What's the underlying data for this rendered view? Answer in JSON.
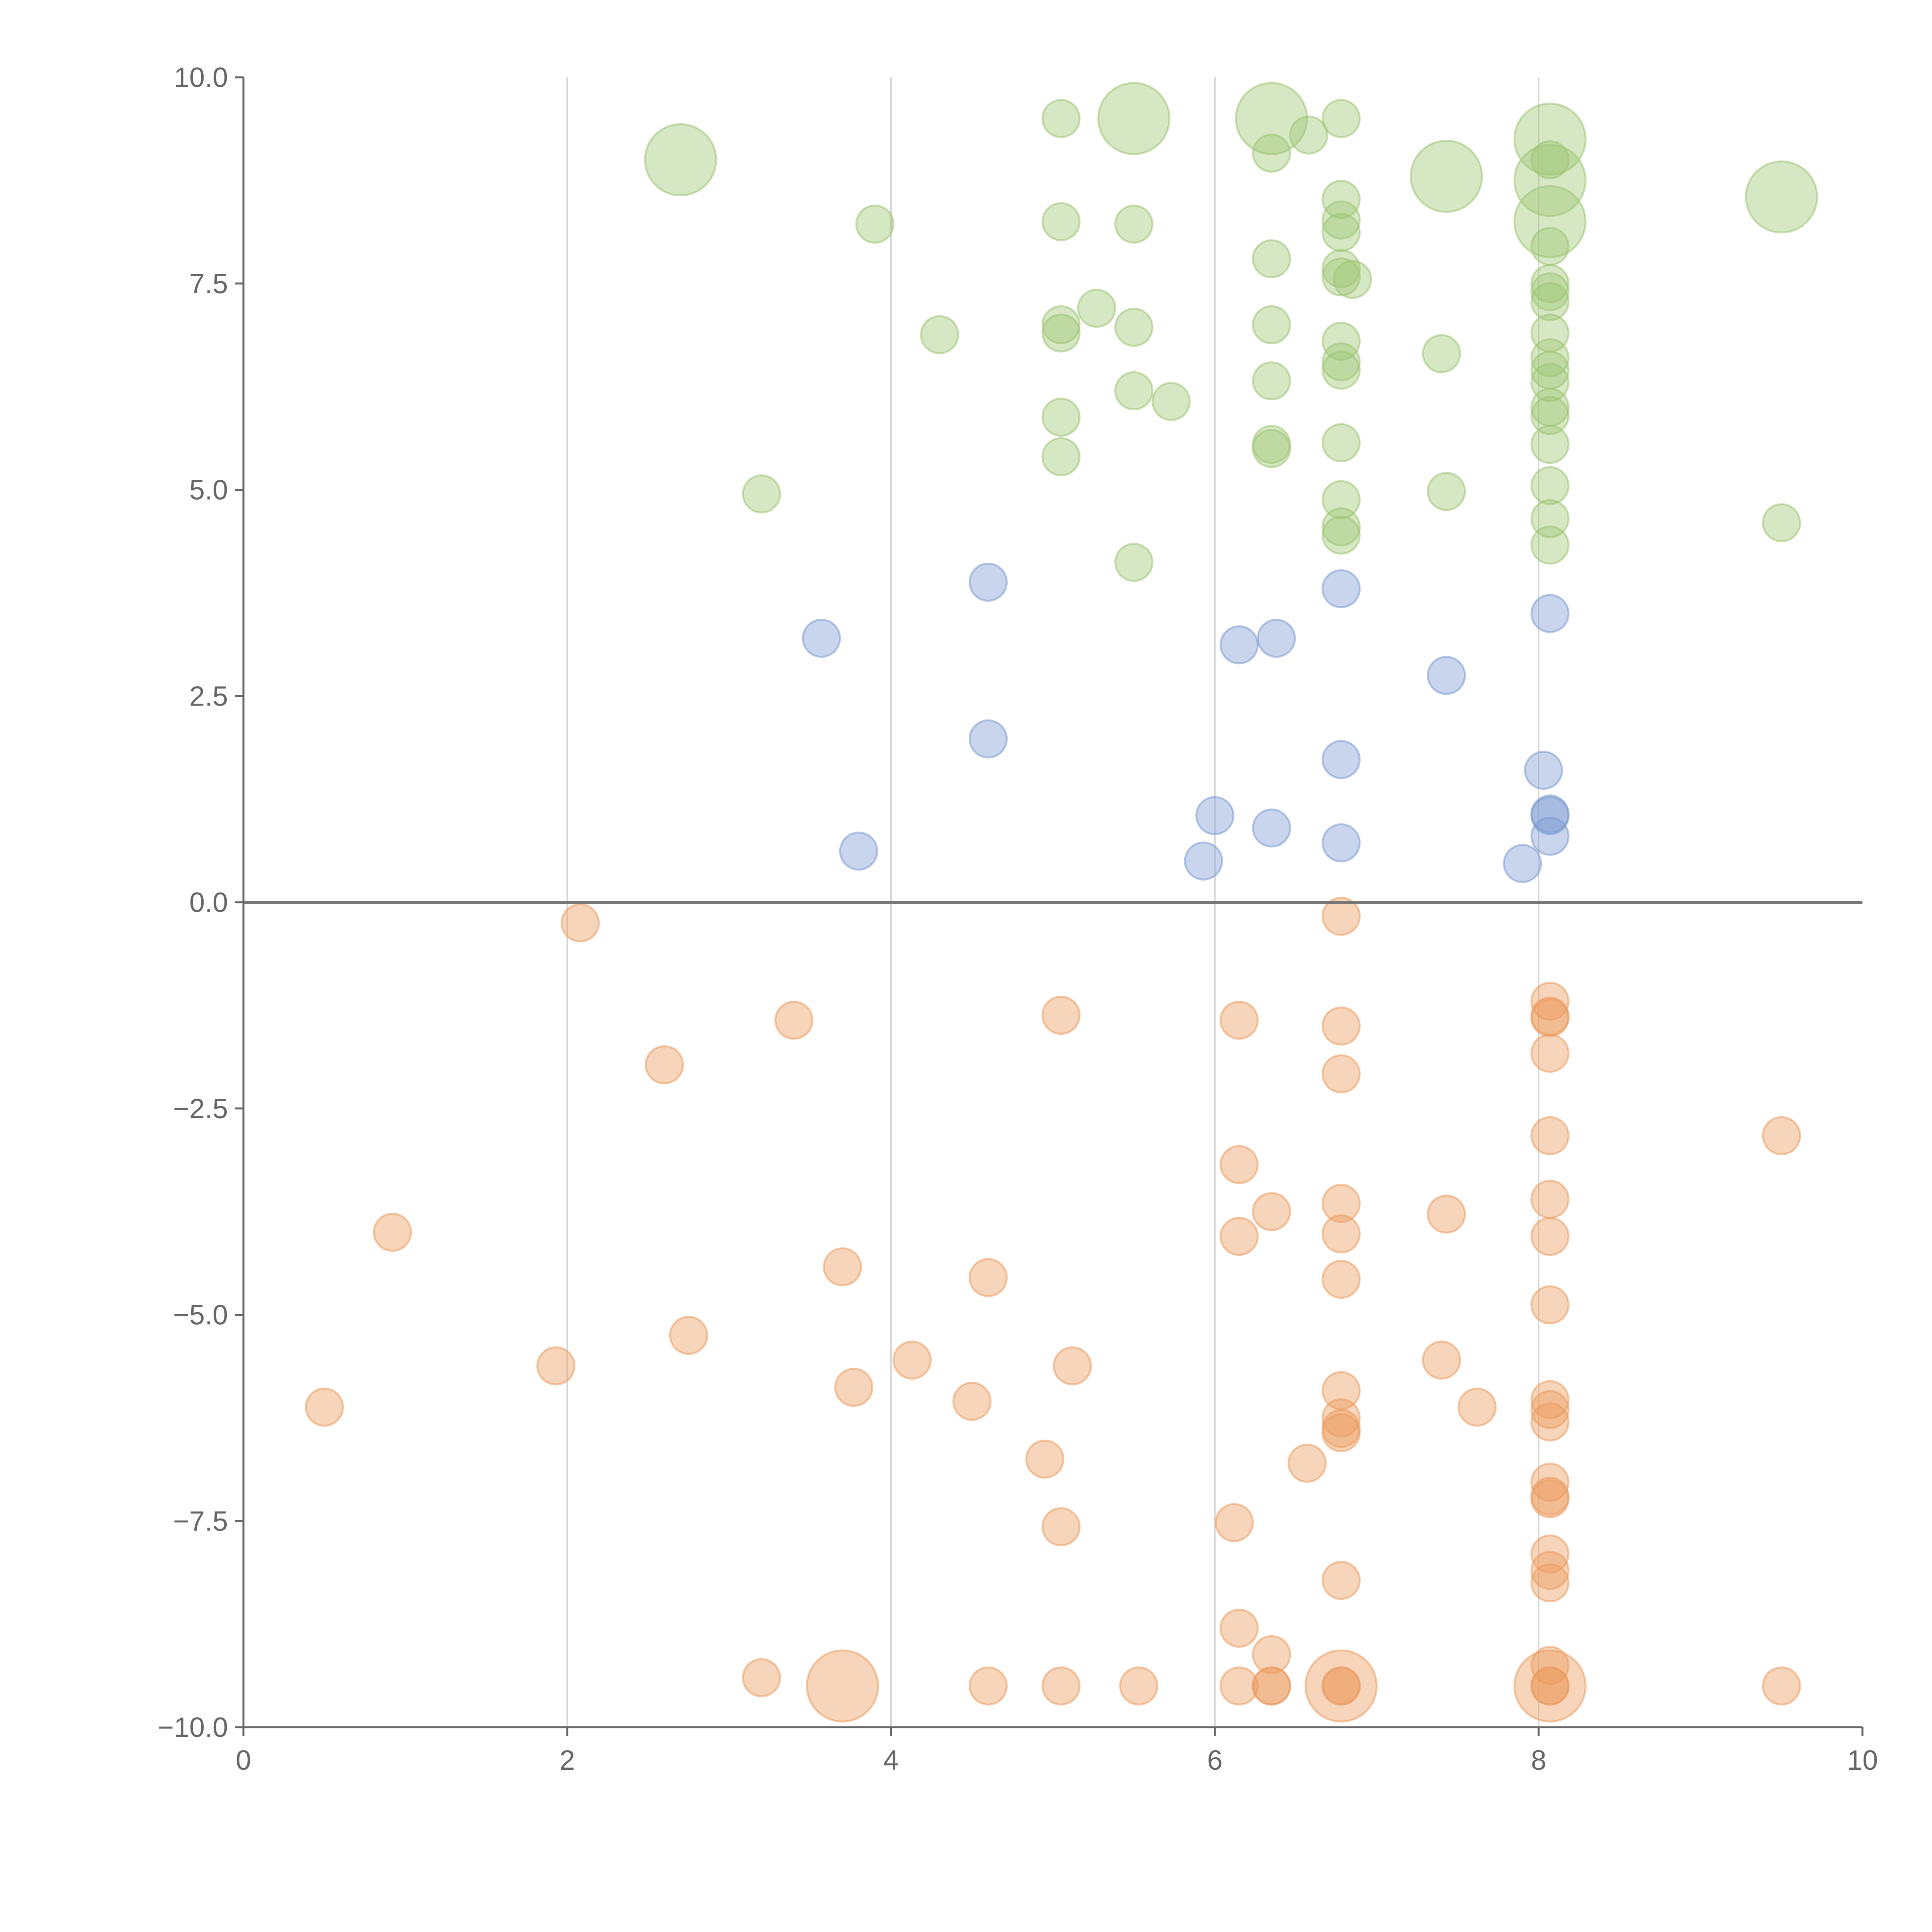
{
  "chart_data": {
    "type": "scatter",
    "title": "",
    "xlabel": "",
    "ylabel": "",
    "xlim": [
      0,
      10
    ],
    "ylim": [
      -10,
      10
    ],
    "x_ticks": [
      "0",
      "2",
      "4",
      "6",
      "8",
      "10"
    ],
    "y_ticks": [
      "10.0",
      "7.5",
      "5.0",
      "2.5",
      "0.0",
      "−2.5",
      "−5.0",
      "−7.5",
      "−10.0"
    ],
    "x_tick_values": [
      0,
      2,
      4,
      6,
      8,
      10
    ],
    "y_tick_values": [
      10,
      7.5,
      5,
      2.5,
      0,
      -2.5,
      -5,
      -7.5,
      -10
    ],
    "grid": {
      "vertical": true,
      "horizontal": false,
      "zero_line": true
    },
    "colors": {
      "green": "#9dc573",
      "blue": "#7b9bd1",
      "orange": "#eb9a5e",
      "grid": "#d6d6d6",
      "axis": "#666666"
    },
    "series": [
      {
        "color": "#9dc573",
        "points": [
          [
            2.7,
            9.0,
            3
          ],
          [
            5.05,
            9.5,
            1
          ],
          [
            5.5,
            9.5,
            3
          ],
          [
            6.35,
            9.5,
            3
          ],
          [
            6.58,
            9.3,
            1
          ],
          [
            6.35,
            9.08,
            1
          ],
          [
            6.78,
            9.5,
            1
          ],
          [
            8.07,
            9.25,
            3
          ],
          [
            8.07,
            9.0,
            1
          ],
          [
            8.07,
            8.75,
            3
          ],
          [
            7.43,
            8.8,
            3
          ],
          [
            9.5,
            8.55,
            3
          ],
          [
            8.07,
            8.25,
            3
          ],
          [
            3.9,
            8.22,
            1
          ],
          [
            5.05,
            8.25,
            1
          ],
          [
            5.5,
            8.22,
            1
          ],
          [
            6.78,
            8.52,
            1
          ],
          [
            6.78,
            8.27,
            1
          ],
          [
            6.78,
            8.12,
            1
          ],
          [
            8.07,
            7.95,
            1
          ],
          [
            6.35,
            7.8,
            1
          ],
          [
            6.78,
            7.68,
            1
          ],
          [
            6.78,
            7.58,
            1
          ],
          [
            6.85,
            7.55,
            1
          ],
          [
            8.07,
            7.5,
            1
          ],
          [
            8.07,
            7.4,
            1
          ],
          [
            8.07,
            7.28,
            1
          ],
          [
            5.27,
            7.2,
            1
          ],
          [
            5.05,
            7.0,
            1
          ],
          [
            5.05,
            6.9,
            1
          ],
          [
            5.5,
            6.97,
            1
          ],
          [
            6.35,
            7.0,
            1
          ],
          [
            4.3,
            6.88,
            1
          ],
          [
            6.78,
            6.8,
            1
          ],
          [
            8.07,
            6.9,
            1
          ],
          [
            7.4,
            6.65,
            1
          ],
          [
            6.78,
            6.55,
            1
          ],
          [
            6.78,
            6.45,
            1
          ],
          [
            8.07,
            6.6,
            1
          ],
          [
            8.07,
            6.45,
            1
          ],
          [
            8.07,
            6.3,
            1
          ],
          [
            6.35,
            6.32,
            1
          ],
          [
            5.5,
            6.2,
            1
          ],
          [
            5.73,
            6.07,
            1
          ],
          [
            8.07,
            6.0,
            1
          ],
          [
            8.07,
            5.9,
            1
          ],
          [
            5.05,
            5.88,
            1
          ],
          [
            6.35,
            5.55,
            1
          ],
          [
            6.35,
            5.5,
            1
          ],
          [
            6.78,
            5.57,
            1
          ],
          [
            8.07,
            5.55,
            1
          ],
          [
            5.05,
            5.4,
            1
          ],
          [
            3.2,
            4.95,
            1
          ],
          [
            7.43,
            4.98,
            1
          ],
          [
            8.07,
            5.05,
            1
          ],
          [
            6.78,
            4.88,
            1
          ],
          [
            8.07,
            4.65,
            1
          ],
          [
            6.78,
            4.55,
            1
          ],
          [
            6.78,
            4.45,
            1
          ],
          [
            9.5,
            4.6,
            1
          ],
          [
            8.07,
            4.33,
            1
          ],
          [
            5.5,
            4.12,
            1
          ]
        ]
      },
      {
        "color": "#7b9bd1",
        "points": [
          [
            4.6,
            3.88,
            1
          ],
          [
            6.78,
            3.8,
            1
          ],
          [
            8.07,
            3.5,
            1
          ],
          [
            3.57,
            3.2,
            1
          ],
          [
            6.15,
            3.12,
            1
          ],
          [
            6.38,
            3.2,
            1
          ],
          [
            7.43,
            2.75,
            1
          ],
          [
            4.6,
            1.98,
            1
          ],
          [
            6.78,
            1.73,
            1
          ],
          [
            8.03,
            1.6,
            1
          ],
          [
            6.0,
            1.05,
            1
          ],
          [
            8.07,
            1.07,
            1
          ],
          [
            8.07,
            1.05,
            1
          ],
          [
            6.35,
            0.9,
            1
          ],
          [
            8.07,
            0.8,
            1
          ],
          [
            6.78,
            0.72,
            1
          ],
          [
            3.8,
            0.62,
            1
          ],
          [
            5.93,
            0.5,
            1
          ],
          [
            7.9,
            0.47,
            1
          ]
        ]
      },
      {
        "color": "#eb9a5e",
        "points": [
          [
            2.08,
            -0.25,
            1
          ],
          [
            6.78,
            -0.17,
            1
          ],
          [
            8.07,
            -1.2,
            1
          ],
          [
            8.07,
            -1.38,
            1
          ],
          [
            8.07,
            -1.4,
            1
          ],
          [
            3.4,
            -1.43,
            1
          ],
          [
            5.05,
            -1.37,
            1
          ],
          [
            6.15,
            -1.43,
            1
          ],
          [
            6.78,
            -1.5,
            1
          ],
          [
            8.07,
            -1.83,
            1
          ],
          [
            2.6,
            -1.97,
            1
          ],
          [
            6.78,
            -2.08,
            1
          ],
          [
            8.07,
            -2.83,
            1
          ],
          [
            9.5,
            -2.83,
            1
          ],
          [
            6.15,
            -3.18,
            1
          ],
          [
            8.07,
            -3.6,
            1
          ],
          [
            6.78,
            -3.65,
            1
          ],
          [
            6.35,
            -3.75,
            1
          ],
          [
            7.43,
            -3.78,
            1
          ],
          [
            0.92,
            -4.0,
            1
          ],
          [
            6.78,
            -4.02,
            1
          ],
          [
            6.15,
            -4.05,
            1
          ],
          [
            8.07,
            -4.05,
            1
          ],
          [
            3.7,
            -4.42,
            1
          ],
          [
            4.6,
            -4.55,
            1
          ],
          [
            6.78,
            -4.57,
            1
          ],
          [
            8.07,
            -4.88,
            1
          ],
          [
            2.75,
            -5.25,
            1
          ],
          [
            1.93,
            -5.62,
            1
          ],
          [
            4.13,
            -5.55,
            1
          ],
          [
            5.12,
            -5.62,
            1
          ],
          [
            7.4,
            -5.55,
            1
          ],
          [
            3.77,
            -5.88,
            1
          ],
          [
            6.78,
            -5.92,
            1
          ],
          [
            8.07,
            -6.03,
            1
          ],
          [
            4.5,
            -6.05,
            1
          ],
          [
            0.5,
            -6.12,
            1
          ],
          [
            7.62,
            -6.12,
            1
          ],
          [
            8.07,
            -6.15,
            1
          ],
          [
            8.07,
            -6.3,
            1
          ],
          [
            6.78,
            -6.25,
            1
          ],
          [
            6.78,
            -6.38,
            1
          ],
          [
            6.78,
            -6.43,
            1
          ],
          [
            4.95,
            -6.75,
            1
          ],
          [
            6.57,
            -6.8,
            1
          ],
          [
            8.07,
            -7.03,
            1
          ],
          [
            8.07,
            -7.2,
            1
          ],
          [
            8.07,
            -7.23,
            1
          ],
          [
            5.05,
            -7.57,
            1
          ],
          [
            6.12,
            -7.52,
            1
          ],
          [
            8.07,
            -7.9,
            1
          ],
          [
            8.07,
            -8.1,
            1
          ],
          [
            8.07,
            -8.25,
            1
          ],
          [
            6.78,
            -8.22,
            1
          ],
          [
            6.15,
            -8.8,
            1
          ],
          [
            6.35,
            -9.12,
            1
          ],
          [
            8.07,
            -9.25,
            1
          ],
          [
            3.2,
            -9.4,
            1
          ],
          [
            3.7,
            -9.5,
            3
          ],
          [
            4.6,
            -9.5,
            1
          ],
          [
            5.05,
            -9.5,
            1
          ],
          [
            5.53,
            -9.5,
            1
          ],
          [
            6.15,
            -9.5,
            1
          ],
          [
            6.35,
            -9.5,
            1
          ],
          [
            6.35,
            -9.5,
            1
          ],
          [
            6.78,
            -9.5,
            3
          ],
          [
            6.78,
            -9.5,
            1
          ],
          [
            6.78,
            -9.5,
            1
          ],
          [
            8.07,
            -9.5,
            3
          ],
          [
            8.07,
            -9.5,
            1
          ],
          [
            8.07,
            -9.5,
            1
          ],
          [
            9.5,
            -9.5,
            1
          ]
        ]
      }
    ]
  }
}
